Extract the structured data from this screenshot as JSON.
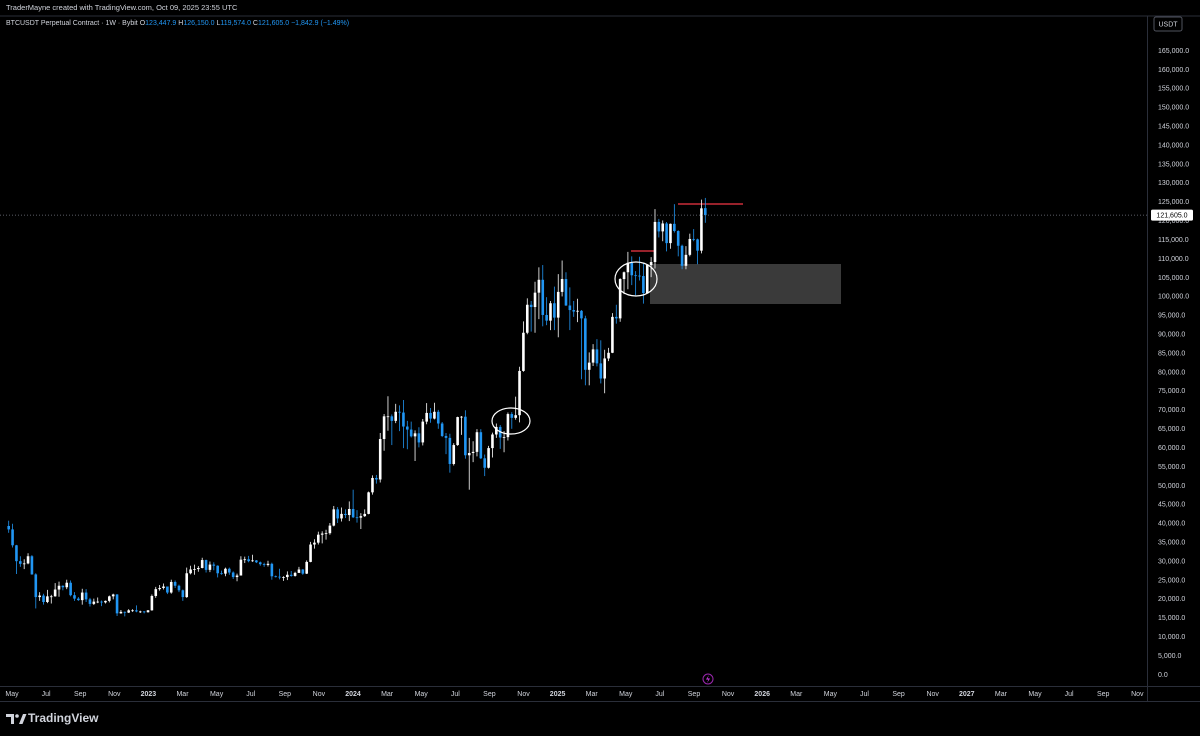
{
  "header": "TraderMayne created with TradingView.com, Oct 09, 2025 23:55 UTC",
  "brand": "TradingView",
  "chart_data": {
    "type": "candlestick",
    "symbol": "BTCUSDT Perpetual Contract · 1W · Bybit",
    "ohlc_legend": [
      {
        "key": "O",
        "text": "123,447.9"
      },
      {
        "key": "H",
        "text": "126,150.0"
      },
      {
        "key": "L",
        "text": "119,574.0"
      },
      {
        "key": "C",
        "text": "121,605.0"
      }
    ],
    "change": "−1,842.9 (−1.49%)",
    "currency": "USDT",
    "up_color": "#ffffff",
    "down_color": "#2196f3",
    "last_price": {
      "value": 121605,
      "label": "121,605.0"
    },
    "ylim": [
      0,
      165000
    ],
    "yticks": [
      {
        "value": 0,
        "label": "0.0"
      },
      {
        "value": 5000,
        "label": "5,000.0"
      },
      {
        "value": 10000,
        "label": "10,000.0"
      },
      {
        "value": 15000,
        "label": "15,000.0"
      },
      {
        "value": 20000,
        "label": "20,000.0"
      },
      {
        "value": 25000,
        "label": "25,000.0"
      },
      {
        "value": 30000,
        "label": "30,000.0"
      },
      {
        "value": 35000,
        "label": "35,000.0"
      },
      {
        "value": 40000,
        "label": "40,000.0"
      },
      {
        "value": 45000,
        "label": "45,000.0"
      },
      {
        "value": 50000,
        "label": "50,000.0"
      },
      {
        "value": 55000,
        "label": "55,000.0"
      },
      {
        "value": 60000,
        "label": "60,000.0"
      },
      {
        "value": 65000,
        "label": "65,000.0"
      },
      {
        "value": 70000,
        "label": "70,000.0"
      },
      {
        "value": 75000,
        "label": "75,000.0"
      },
      {
        "value": 80000,
        "label": "80,000.0"
      },
      {
        "value": 85000,
        "label": "85,000.0"
      },
      {
        "value": 90000,
        "label": "90,000.0"
      },
      {
        "value": 95000,
        "label": "95,000.0"
      },
      {
        "value": 100000,
        "label": "100,000.0"
      },
      {
        "value": 105000,
        "label": "105,000.0"
      },
      {
        "value": 110000,
        "label": "110,000.0"
      },
      {
        "value": 115000,
        "label": "115,000.0"
      },
      {
        "value": 120000,
        "label": "120,000.0"
      },
      {
        "value": 125000,
        "label": "125,000.0"
      },
      {
        "value": 130000,
        "label": "130,000.0"
      },
      {
        "value": 135000,
        "label": "135,000.0"
      },
      {
        "value": 140000,
        "label": "140,000.0"
      },
      {
        "value": 145000,
        "label": "145,000.0"
      },
      {
        "value": 150000,
        "label": "150,000.0"
      },
      {
        "value": 155000,
        "label": "155,000.0"
      },
      {
        "value": 160000,
        "label": "160,000.0"
      },
      {
        "value": 165000,
        "label": "165,000.0"
      }
    ],
    "xticks": [
      "May",
      "Jul",
      "Sep",
      "Nov",
      "2023",
      "Mar",
      "May",
      "Jul",
      "Sep",
      "Nov",
      "2024",
      "Mar",
      "May",
      "Jul",
      "Sep",
      "Nov",
      "2025",
      "Mar",
      "May",
      "Jul",
      "Sep",
      "Nov",
      "2026",
      "Mar",
      "May",
      "Jul",
      "Sep",
      "Nov",
      "2027",
      "Mar",
      "May",
      "Jul",
      "Sep",
      "Nov"
    ],
    "ohlc": [
      [
        39400,
        40800,
        37600,
        38500
      ],
      [
        38500,
        40000,
        33700,
        34300
      ],
      [
        34300,
        34400,
        26700,
        30100
      ],
      [
        30100,
        31400,
        28600,
        29400
      ],
      [
        29400,
        30600,
        28000,
        29500
      ],
      [
        29500,
        32200,
        29300,
        31400
      ],
      [
        31400,
        31700,
        26500,
        26600
      ],
      [
        26600,
        26900,
        17600,
        20600
      ],
      [
        20600,
        21900,
        19600,
        21000
      ],
      [
        21000,
        21500,
        18600,
        19300
      ],
      [
        19300,
        22500,
        19000,
        20800
      ],
      [
        20800,
        21200,
        18900,
        20800
      ],
      [
        20800,
        24300,
        20700,
        22600
      ],
      [
        22600,
        24700,
        20700,
        23600
      ],
      [
        23600,
        23700,
        22400,
        23200
      ],
      [
        23200,
        25200,
        22700,
        24400
      ],
      [
        24400,
        25000,
        20800,
        21100
      ],
      [
        21100,
        21900,
        19600,
        20200
      ],
      [
        20200,
        20600,
        19600,
        19800
      ],
      [
        19800,
        22800,
        18600,
        21800
      ],
      [
        21800,
        22700,
        19300,
        20000
      ],
      [
        20000,
        20400,
        18100,
        18800
      ],
      [
        18800,
        20200,
        18500,
        19400
      ],
      [
        19400,
        20500,
        19000,
        19400
      ],
      [
        19400,
        19700,
        18200,
        19200
      ],
      [
        19200,
        19700,
        18900,
        19600
      ],
      [
        19600,
        21000,
        19200,
        20800
      ],
      [
        20800,
        21500,
        20000,
        21300
      ],
      [
        21300,
        21400,
        15600,
        16300
      ],
      [
        16300,
        17200,
        16200,
        16700
      ],
      [
        16700,
        16800,
        15500,
        16500
      ],
      [
        16500,
        17400,
        16400,
        17100
      ],
      [
        17100,
        17400,
        16700,
        17100
      ],
      [
        17100,
        18400,
        16600,
        16800
      ],
      [
        16800,
        17000,
        16400,
        16800
      ],
      [
        16800,
        16900,
        16300,
        16600
      ],
      [
        16600,
        17200,
        16500,
        17100
      ],
      [
        17100,
        21300,
        17000,
        20900
      ],
      [
        20900,
        23300,
        20400,
        22700
      ],
      [
        22700,
        23800,
        22300,
        23000
      ],
      [
        23000,
        24200,
        22600,
        23400
      ],
      [
        23400,
        23400,
        21400,
        21800
      ],
      [
        21800,
        25200,
        21500,
        24600
      ],
      [
        24600,
        25000,
        23000,
        23600
      ],
      [
        23600,
        23900,
        21900,
        22400
      ],
      [
        22400,
        22600,
        19600,
        20600
      ],
      [
        20600,
        28400,
        20400,
        26900
      ],
      [
        26900,
        28900,
        26600,
        27900
      ],
      [
        27900,
        29200,
        26500,
        28000
      ],
      [
        28000,
        28800,
        27300,
        28300
      ],
      [
        28300,
        31000,
        28200,
        30400
      ],
      [
        30400,
        30500,
        27100,
        27800
      ],
      [
        27800,
        30000,
        27200,
        29200
      ],
      [
        29200,
        29800,
        27700,
        28900
      ],
      [
        28900,
        29000,
        25800,
        26900
      ],
      [
        26900,
        27600,
        26500,
        26800
      ],
      [
        26800,
        28400,
        26100,
        28100
      ],
      [
        28100,
        28400,
        26500,
        27100
      ],
      [
        27100,
        27400,
        25400,
        25900
      ],
      [
        25900,
        26800,
        24800,
        26300
      ],
      [
        26300,
        31400,
        26300,
        30500
      ],
      [
        30500,
        31300,
        29600,
        30600
      ],
      [
        30600,
        31500,
        29800,
        30100
      ],
      [
        30100,
        31800,
        29900,
        30300
      ],
      [
        30300,
        30400,
        29600,
        29800
      ],
      [
        29800,
        30000,
        28900,
        29300
      ],
      [
        29300,
        29700,
        28600,
        29100
      ],
      [
        29100,
        30200,
        28700,
        29400
      ],
      [
        29400,
        29700,
        25200,
        26100
      ],
      [
        26100,
        26300,
        25800,
        26000
      ],
      [
        26000,
        28100,
        25300,
        25800
      ],
      [
        25800,
        26100,
        24900,
        25900
      ],
      [
        25900,
        27400,
        25100,
        26500
      ],
      [
        26500,
        27500,
        26000,
        26200
      ],
      [
        26200,
        27300,
        26000,
        27000
      ],
      [
        27000,
        28600,
        27000,
        27900
      ],
      [
        27900,
        28000,
        26500,
        26800
      ],
      [
        26800,
        30300,
        26700,
        29900
      ],
      [
        29900,
        35200,
        29800,
        34500
      ],
      [
        34500,
        35900,
        33400,
        35000
      ],
      [
        35000,
        37900,
        34500,
        37100
      ],
      [
        37100,
        38000,
        34800,
        37400
      ],
      [
        37400,
        38400,
        35800,
        37500
      ],
      [
        37500,
        40200,
        37100,
        39500
      ],
      [
        39500,
        44700,
        39300,
        43800
      ],
      [
        43800,
        44400,
        40200,
        41400
      ],
      [
        41400,
        44300,
        40600,
        42600
      ],
      [
        42600,
        43800,
        41500,
        42300
      ],
      [
        42300,
        45900,
        40700,
        43900
      ],
      [
        43900,
        49000,
        41500,
        41700
      ],
      [
        41700,
        43600,
        40300,
        41600
      ],
      [
        41600,
        42800,
        38600,
        42000
      ],
      [
        42000,
        43800,
        41800,
        42600
      ],
      [
        42600,
        48500,
        42500,
        48300
      ],
      [
        48300,
        52800,
        47700,
        52100
      ],
      [
        52100,
        52900,
        50600,
        51700
      ],
      [
        51700,
        64000,
        50900,
        62400
      ],
      [
        62400,
        69000,
        59300,
        68400
      ],
      [
        68400,
        73700,
        64600,
        68400
      ],
      [
        68400,
        68900,
        60800,
        67200
      ],
      [
        67200,
        71700,
        66600,
        69600
      ],
      [
        69600,
        71300,
        64500,
        69400
      ],
      [
        69400,
        72700,
        60000,
        65700
      ],
      [
        65700,
        67200,
        59700,
        64900
      ],
      [
        64900,
        67000,
        62800,
        63100
      ],
      [
        63100,
        64700,
        56600,
        63900
      ],
      [
        63900,
        65500,
        60200,
        61500
      ],
      [
        61500,
        67700,
        60700,
        67000
      ],
      [
        67000,
        71900,
        66300,
        69300
      ],
      [
        69300,
        70600,
        66700,
        67800
      ],
      [
        67800,
        72000,
        67600,
        69600
      ],
      [
        69600,
        70100,
        65100,
        66500
      ],
      [
        66500,
        66900,
        62900,
        63200
      ],
      [
        63200,
        64000,
        58400,
        62700
      ],
      [
        62700,
        63800,
        53500,
        55800
      ],
      [
        55800,
        61300,
        55400,
        60800
      ],
      [
        60800,
        68300,
        60600,
        68200
      ],
      [
        68200,
        68500,
        63500,
        68300
      ],
      [
        68300,
        70000,
        57200,
        58100
      ],
      [
        58100,
        62700,
        49000,
        58700
      ],
      [
        58700,
        61800,
        56300,
        59000
      ],
      [
        59000,
        65000,
        57800,
        64200
      ],
      [
        64200,
        65000,
        57100,
        57300
      ],
      [
        57300,
        58300,
        52600,
        54800
      ],
      [
        54800,
        60600,
        54600,
        60000
      ],
      [
        60000,
        64100,
        57500,
        63600
      ],
      [
        63600,
        66500,
        62700,
        65600
      ],
      [
        65600,
        66100,
        59800,
        62800
      ],
      [
        62800,
        64500,
        58900,
        62900
      ],
      [
        62900,
        69400,
        62000,
        69000
      ],
      [
        69000,
        69500,
        65100,
        68000
      ],
      [
        68000,
        73600,
        67500,
        68700
      ],
      [
        68700,
        81500,
        66800,
        80400
      ],
      [
        80400,
        93500,
        80200,
        90500
      ],
      [
        90500,
        99600,
        90100,
        97900
      ],
      [
        97900,
        98900,
        90800,
        97300
      ],
      [
        97300,
        104000,
        90500,
        101100
      ],
      [
        101100,
        107800,
        94100,
        104500
      ],
      [
        104500,
        108400,
        92200,
        95200
      ],
      [
        95200,
        99900,
        92500,
        93700
      ],
      [
        93700,
        98900,
        91200,
        98300
      ],
      [
        98300,
        102700,
        91200,
        94500
      ],
      [
        94500,
        106000,
        89300,
        101300
      ],
      [
        101300,
        109600,
        100100,
        104700
      ],
      [
        104700,
        106500,
        97600,
        97700
      ],
      [
        97700,
        102500,
        91200,
        96500
      ],
      [
        96500,
        98900,
        94700,
        96100
      ],
      [
        96100,
        99500,
        93300,
        96300
      ],
      [
        96300,
        96500,
        78200,
        94300
      ],
      [
        94300,
        95000,
        76600,
        80700
      ],
      [
        80700,
        85300,
        76600,
        82600
      ],
      [
        82600,
        87500,
        81700,
        86100
      ],
      [
        86100,
        88800,
        81600,
        82400
      ],
      [
        82400,
        88500,
        77100,
        78400
      ],
      [
        78400,
        86000,
        74500,
        83700
      ],
      [
        83700,
        86500,
        83000,
        85200
      ],
      [
        85200,
        95700,
        85100,
        94700
      ],
      [
        94700,
        97900,
        92900,
        94300
      ],
      [
        94300,
        104900,
        93400,
        104700
      ],
      [
        104700,
        106700,
        100700,
        106500
      ],
      [
        106500,
        111900,
        102000,
        109000
      ],
      [
        109000,
        110700,
        103100,
        105700
      ],
      [
        105700,
        106800,
        100400,
        105600
      ],
      [
        105600,
        110600,
        104300,
        105500
      ],
      [
        105500,
        108900,
        98200,
        101000
      ],
      [
        101000,
        108500,
        100900,
        108400
      ],
      [
        108400,
        110500,
        105200,
        109200
      ],
      [
        109200,
        123200,
        107500,
        119800
      ],
      [
        119800,
        120600,
        115700,
        117300
      ],
      [
        117300,
        120200,
        114700,
        119400
      ],
      [
        119400,
        119800,
        112000,
        114200
      ],
      [
        114200,
        119400,
        112700,
        119300
      ],
      [
        119300,
        124500,
        117000,
        117400
      ],
      [
        117400,
        117600,
        110700,
        113500
      ],
      [
        113500,
        113800,
        107300,
        108200
      ],
      [
        108200,
        113400,
        107300,
        111100
      ],
      [
        111100,
        116700,
        110700,
        115300
      ],
      [
        115300,
        117900,
        114700,
        115200
      ],
      [
        115200,
        115400,
        108600,
        112200
      ],
      [
        112200,
        125700,
        111500,
        123400
      ],
      [
        123447.9,
        126150,
        119574,
        121605
      ]
    ]
  }
}
